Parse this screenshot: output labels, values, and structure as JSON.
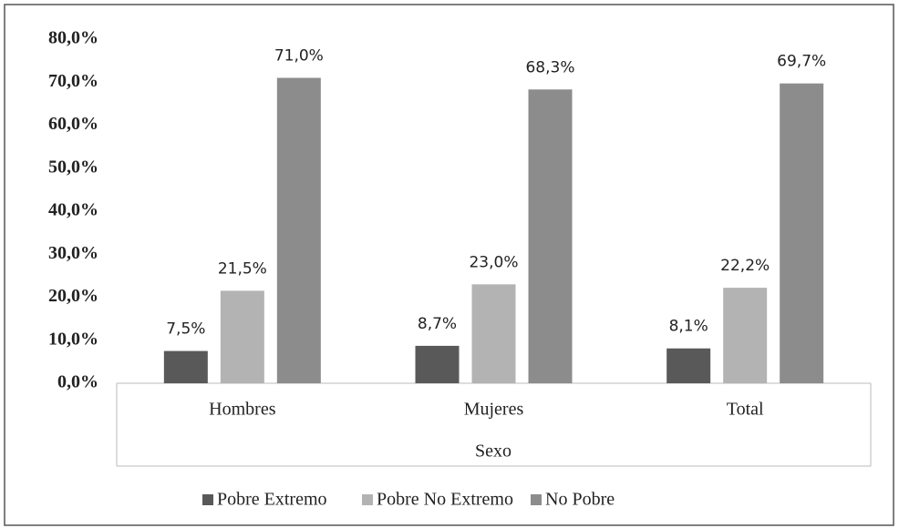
{
  "chart_data": {
    "type": "bar",
    "x_label": "Sexo",
    "categories": [
      "Hombres",
      "Mujeres",
      "Total"
    ],
    "series": [
      {
        "name": "Pobre Extremo",
        "color": "#595959",
        "values": [
          7.5,
          8.7,
          8.1
        ],
        "value_labels": [
          "7,5%",
          "8,7%",
          "8,1%"
        ]
      },
      {
        "name": "Pobre No Extremo",
        "color": "#b3b3b3",
        "values": [
          21.5,
          23.0,
          22.2
        ],
        "value_labels": [
          "21,5%",
          "23,0%",
          "22,2%"
        ]
      },
      {
        "name": "No Pobre",
        "color": "#8c8c8c",
        "values": [
          71.0,
          68.3,
          69.7
        ],
        "value_labels": [
          "71,0%",
          "68,3%",
          "69,7%"
        ]
      }
    ],
    "ylim": [
      0,
      80
    ],
    "yticks": [
      {
        "value": 0,
        "label": "0,0%"
      },
      {
        "value": 10,
        "label": "10,0%"
      },
      {
        "value": 20,
        "label": "20,0%"
      },
      {
        "value": 30,
        "label": "30,0%"
      },
      {
        "value": 40,
        "label": "40,0%"
      },
      {
        "value": 50,
        "label": "50,0%"
      },
      {
        "value": 60,
        "label": "60,0%"
      },
      {
        "value": 70,
        "label": "70,0%"
      },
      {
        "value": 80,
        "label": "80,0%"
      }
    ],
    "grid": false,
    "legend": "bottom"
  }
}
